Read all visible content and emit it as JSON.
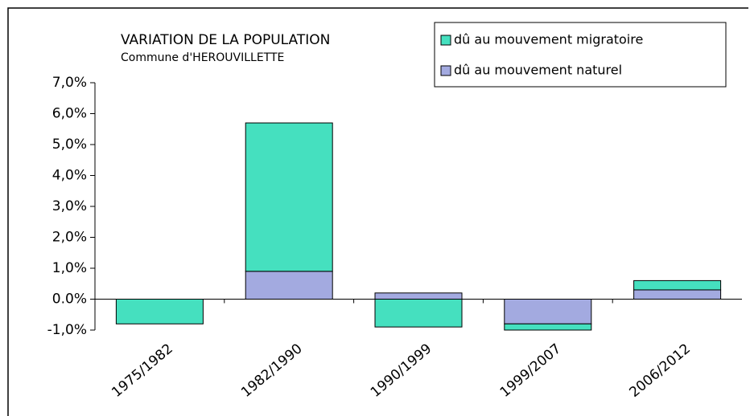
{
  "chart_data": {
    "type": "stacked_bar",
    "title": "VARIATION DE LA POPULATION",
    "subtitle": "Commune d'HEROUVILLETTE",
    "categories": [
      "1975/1982",
      "1982/1990",
      "1990/1999",
      "1999/2007",
      "2006/2012"
    ],
    "series": [
      {
        "name": "dû au mouvement migratoire",
        "color": "#45e0bf",
        "values": [
          -0.8,
          4.8,
          -0.9,
          -0.2,
          0.3
        ]
      },
      {
        "name": "dû au mouvement naturel",
        "color": "#a3aae0",
        "values": [
          0,
          0.9,
          0.2,
          -0.8,
          0.3
        ]
      }
    ],
    "ylim": [
      -1,
      7
    ],
    "yticks": [
      {
        "value": -1,
        "label": "-1,0%"
      },
      {
        "value": 0,
        "label": "0.0%"
      },
      {
        "value": 1,
        "label": "1,0%"
      },
      {
        "value": 2,
        "label": "2,0%"
      },
      {
        "value": 3,
        "label": "3,0%"
      },
      {
        "value": 4,
        "label": "4,0%"
      },
      {
        "value": 5,
        "label": "5,0%"
      },
      {
        "value": 6,
        "label": "6,0%"
      },
      {
        "value": 7,
        "label": "7,0%"
      }
    ]
  }
}
